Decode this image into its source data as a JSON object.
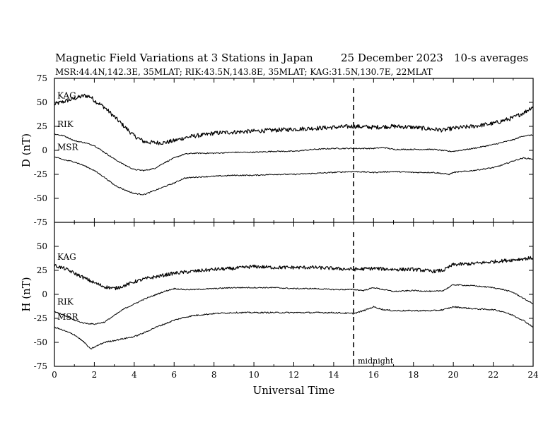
{
  "header": {
    "title": "Magnetic Field Variations at 3 Stations in Japan",
    "date": "25 December 2023",
    "averaging": "10-s averages",
    "stations": "MSR:44.4N,142.3E, 35MLAT;  RIK:43.5N,143.8E, 35MLAT;  KAG:31.5N,130.7E, 22MLAT"
  },
  "chart_data": [
    {
      "type": "line",
      "ylabel": "D (nT)",
      "xlabel": "",
      "xlim": [
        0,
        24
      ],
      "ylim": [
        -75,
        75
      ],
      "yticks": [
        75,
        50,
        25,
        0,
        -25,
        -50,
        -75
      ],
      "marker": {
        "x": 15
      },
      "series": [
        {
          "name": "KAG",
          "noise": 2.2,
          "points": [
            [
              0,
              48
            ],
            [
              0.5,
              51
            ],
            [
              1,
              54
            ],
            [
              1.5,
              57
            ],
            [
              1.8,
              56
            ],
            [
              2,
              52
            ],
            [
              2.5,
              45
            ],
            [
              3,
              35
            ],
            [
              3.5,
              25
            ],
            [
              4,
              15
            ],
            [
              4.5,
              9
            ],
            [
              5,
              8
            ],
            [
              5.5,
              8
            ],
            [
              6,
              10
            ],
            [
              6.5,
              13
            ],
            [
              7,
              15
            ],
            [
              7.5,
              16
            ],
            [
              8,
              18
            ],
            [
              9,
              19
            ],
            [
              10,
              20
            ],
            [
              11,
              21
            ],
            [
              12,
              22
            ],
            [
              13,
              23
            ],
            [
              14,
              24
            ],
            [
              15,
              25
            ],
            [
              16,
              24
            ],
            [
              17,
              25
            ],
            [
              18,
              24
            ],
            [
              19,
              22
            ],
            [
              19.5,
              21
            ],
            [
              20,
              23
            ],
            [
              21,
              25
            ],
            [
              22,
              28
            ],
            [
              23,
              34
            ],
            [
              23.6,
              40
            ],
            [
              24,
              46
            ]
          ]
        },
        {
          "name": "RIK",
          "noise": 0.6,
          "points": [
            [
              0,
              17
            ],
            [
              0.5,
              15
            ],
            [
              1,
              10
            ],
            [
              1.5,
              8
            ],
            [
              2,
              5
            ],
            [
              2.5,
              -2
            ],
            [
              3,
              -9
            ],
            [
              3.5,
              -15
            ],
            [
              4,
              -20
            ],
            [
              4.5,
              -21
            ],
            [
              5,
              -19
            ],
            [
              5.5,
              -13
            ],
            [
              6,
              -8
            ],
            [
              6.5,
              -4
            ],
            [
              7,
              -3
            ],
            [
              8,
              -3
            ],
            [
              9,
              -2
            ],
            [
              10,
              -2
            ],
            [
              11,
              -1
            ],
            [
              12,
              -1
            ],
            [
              13,
              1
            ],
            [
              14,
              2
            ],
            [
              15,
              2
            ],
            [
              16,
              2
            ],
            [
              16.5,
              3
            ],
            [
              17,
              1
            ],
            [
              18,
              1
            ],
            [
              19,
              1
            ],
            [
              19.8,
              -1
            ],
            [
              20,
              -1
            ],
            [
              21,
              2
            ],
            [
              22,
              6
            ],
            [
              23,
              11
            ],
            [
              23.5,
              15
            ],
            [
              24,
              16
            ]
          ]
        },
        {
          "name": "MSR",
          "noise": 0.6,
          "points": [
            [
              0,
              -7
            ],
            [
              0.5,
              -10
            ],
            [
              1,
              -12
            ],
            [
              1.5,
              -16
            ],
            [
              2,
              -21
            ],
            [
              2.5,
              -28
            ],
            [
              3,
              -36
            ],
            [
              3.5,
              -41
            ],
            [
              4,
              -45
            ],
            [
              4.5,
              -46
            ],
            [
              5,
              -42
            ],
            [
              5.5,
              -38
            ],
            [
              6,
              -34
            ],
            [
              6.5,
              -29
            ],
            [
              7,
              -28
            ],
            [
              8,
              -27
            ],
            [
              9,
              -26
            ],
            [
              10,
              -26
            ],
            [
              11,
              -25
            ],
            [
              12,
              -25
            ],
            [
              13,
              -24
            ],
            [
              14,
              -23
            ],
            [
              15,
              -22
            ],
            [
              16,
              -23
            ],
            [
              17,
              -22
            ],
            [
              18,
              -23
            ],
            [
              19,
              -23
            ],
            [
              19.8,
              -25
            ],
            [
              20,
              -23
            ],
            [
              21,
              -21
            ],
            [
              22,
              -18
            ],
            [
              22.5,
              -15
            ],
            [
              23,
              -11
            ],
            [
              23.5,
              -8
            ],
            [
              24,
              -9
            ]
          ]
        }
      ]
    },
    {
      "type": "line",
      "ylabel": "H (nT)",
      "xlabel": "Universal Time",
      "xlim": [
        0,
        24
      ],
      "ylim": [
        -75,
        75
      ],
      "yticks": [
        50,
        25,
        0,
        -25,
        -50,
        -75
      ],
      "xticks": [
        0,
        2,
        4,
        6,
        8,
        10,
        12,
        14,
        16,
        18,
        20,
        22,
        24
      ],
      "marker": {
        "x": 15,
        "label": "midnight"
      },
      "series": [
        {
          "name": "KAG",
          "noise": 1.8,
          "points": [
            [
              0,
              30
            ],
            [
              0.5,
              27
            ],
            [
              1,
              22
            ],
            [
              1.5,
              17
            ],
            [
              2,
              12
            ],
            [
              2.5,
              8
            ],
            [
              3,
              6
            ],
            [
              3.5,
              9
            ],
            [
              4,
              13
            ],
            [
              4.5,
              16
            ],
            [
              5,
              18
            ],
            [
              5.5,
              20
            ],
            [
              6,
              22
            ],
            [
              7,
              24
            ],
            [
              8,
              26
            ],
            [
              9,
              27
            ],
            [
              10,
              29
            ],
            [
              11,
              28
            ],
            [
              12,
              28
            ],
            [
              13,
              28
            ],
            [
              14,
              27
            ],
            [
              15,
              26
            ],
            [
              16,
              27
            ],
            [
              17,
              26
            ],
            [
              18,
              26
            ],
            [
              19,
              24
            ],
            [
              19.5,
              25
            ],
            [
              20,
              31
            ],
            [
              21,
              32
            ],
            [
              22,
              34
            ],
            [
              23,
              36
            ],
            [
              24,
              38
            ]
          ]
        },
        {
          "name": "RIK",
          "noise": 0.6,
          "points": [
            [
              0,
              -18
            ],
            [
              0.5,
              -22
            ],
            [
              1,
              -27
            ],
            [
              1.5,
              -30
            ],
            [
              2,
              -31
            ],
            [
              2.5,
              -29
            ],
            [
              3,
              -22
            ],
            [
              3.5,
              -15
            ],
            [
              4,
              -10
            ],
            [
              4.5,
              -5
            ],
            [
              5,
              -1
            ],
            [
              5.5,
              3
            ],
            [
              6,
              6
            ],
            [
              6.5,
              5
            ],
            [
              7,
              5
            ],
            [
              8,
              6
            ],
            [
              9,
              7
            ],
            [
              10,
              7
            ],
            [
              11,
              7
            ],
            [
              12,
              6
            ],
            [
              13,
              6
            ],
            [
              14,
              5
            ],
            [
              15,
              5
            ],
            [
              15.5,
              4
            ],
            [
              16,
              7
            ],
            [
              16.5,
              5
            ],
            [
              17,
              3
            ],
            [
              18,
              4
            ],
            [
              19,
              3
            ],
            [
              19.5,
              4
            ],
            [
              20,
              10
            ],
            [
              21,
              9
            ],
            [
              22,
              7
            ],
            [
              22.5,
              5
            ],
            [
              23,
              2
            ],
            [
              23.5,
              -4
            ],
            [
              24,
              -10
            ]
          ]
        },
        {
          "name": "MSR",
          "noise": 0.7,
          "points": [
            [
              0,
              -34
            ],
            [
              0.5,
              -38
            ],
            [
              1,
              -42
            ],
            [
              1.5,
              -50
            ],
            [
              1.8,
              -57
            ],
            [
              2,
              -55
            ],
            [
              2.5,
              -50
            ],
            [
              3,
              -48
            ],
            [
              3.5,
              -46
            ],
            [
              4,
              -44
            ],
            [
              4.5,
              -40
            ],
            [
              5,
              -35
            ],
            [
              5.5,
              -31
            ],
            [
              6,
              -27
            ],
            [
              6.5,
              -24
            ],
            [
              7,
              -22
            ],
            [
              8,
              -20
            ],
            [
              9,
              -19
            ],
            [
              10,
              -19
            ],
            [
              11,
              -19
            ],
            [
              12,
              -19
            ],
            [
              13,
              -19
            ],
            [
              14,
              -19
            ],
            [
              15,
              -20
            ],
            [
              15.5,
              -17
            ],
            [
              16,
              -13
            ],
            [
              16.5,
              -16
            ],
            [
              17,
              -17
            ],
            [
              18,
              -17
            ],
            [
              19,
              -17
            ],
            [
              19.5,
              -16
            ],
            [
              20,
              -13
            ],
            [
              21,
              -15
            ],
            [
              22,
              -16
            ],
            [
              22.5,
              -18
            ],
            [
              23,
              -22
            ],
            [
              23.5,
              -27
            ],
            [
              24,
              -34
            ]
          ]
        }
      ]
    }
  ]
}
